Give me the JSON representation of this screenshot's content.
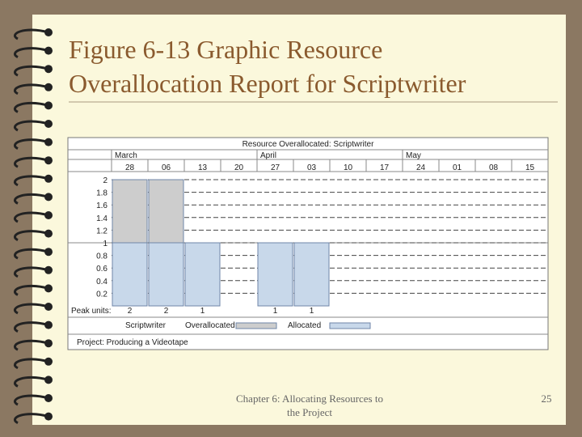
{
  "slide": {
    "title_lines": [
      "Figure 6-13 Graphic Resource",
      "Overallocation Report for Scriptwriter"
    ],
    "footer_lines": [
      "Chapter 6: Allocating Resources to",
      "the Project"
    ],
    "page_number": "25"
  },
  "chart_data": {
    "type": "bar",
    "stacked": true,
    "title": "Resource Overallocated: Scriptwriter",
    "month_labels": [
      "March",
      null,
      null,
      null,
      "April",
      null,
      null,
      null,
      "May",
      null,
      null,
      null
    ],
    "categories": [
      "28",
      "06",
      "13",
      "20",
      "27",
      "03",
      "10",
      "17",
      "24",
      "01",
      "08",
      "15"
    ],
    "series": [
      {
        "name": "Allocated",
        "color": "#c8d8ea",
        "values": [
          1,
          1,
          1,
          null,
          1,
          1,
          null,
          null,
          null,
          null,
          null,
          null
        ]
      },
      {
        "name": "Overallocated",
        "color": "#cdcdcd",
        "values": [
          1,
          1,
          null,
          null,
          null,
          null,
          null,
          null,
          null,
          null,
          null,
          null
        ]
      }
    ],
    "peak_label": "Peak units:",
    "peak_units": [
      2,
      2,
      1,
      null,
      1,
      1,
      null,
      null,
      null,
      null,
      null,
      null
    ],
    "resource": "Scriptwriter",
    "footer": "Project: Producing a Videotape",
    "ylim": [
      0,
      2
    ],
    "yticks": [
      0.2,
      0.4,
      0.6,
      0.8,
      1,
      1.2,
      1.4,
      1.6,
      1.8,
      2
    ],
    "grid": true
  }
}
